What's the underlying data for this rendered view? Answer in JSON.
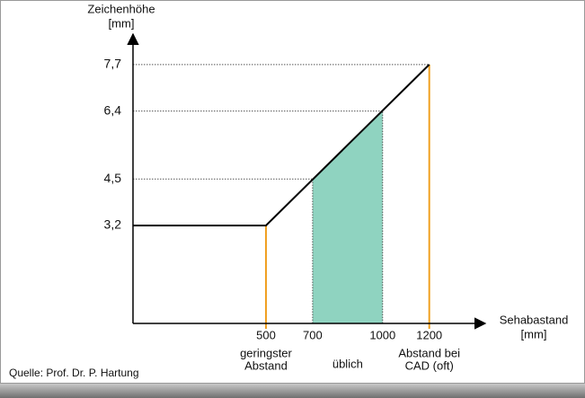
{
  "chart_data": {
    "type": "line",
    "y_label": [
      "Zeichenhöhe",
      "[mm]"
    ],
    "x_label": [
      "Sehabastand",
      "[mm]"
    ],
    "xlim": [
      -70,
      1440
    ],
    "ylim": [
      0.46,
      8.4
    ],
    "xticks": [
      500,
      700,
      1000,
      1200
    ],
    "yticks": [
      {
        "value": 3.2,
        "label": "3,2"
      },
      {
        "value": 4.5,
        "label": "4,5"
      },
      {
        "value": 6.4,
        "label": "6,4"
      },
      {
        "value": 7.7,
        "label": "7,7"
      }
    ],
    "series": [
      {
        "color": "#000000",
        "x": [
          -70,
          500,
          1200
        ],
        "values": [
          3.2,
          3.2,
          7.7
        ]
      }
    ],
    "highlight": {
      "range": [
        700,
        1000
      ],
      "label": "üblich",
      "color": "#8fd3c0"
    },
    "markers": [
      {
        "x": 500,
        "label": [
          "geringster",
          "Abstand"
        ],
        "color": "#f0a020"
      },
      {
        "x": 1200,
        "label": [
          "Abstand bei",
          "CAD (oft)"
        ],
        "color": "#f0a020"
      }
    ],
    "source": "Quelle: Prof. Dr. P. Hartung"
  }
}
